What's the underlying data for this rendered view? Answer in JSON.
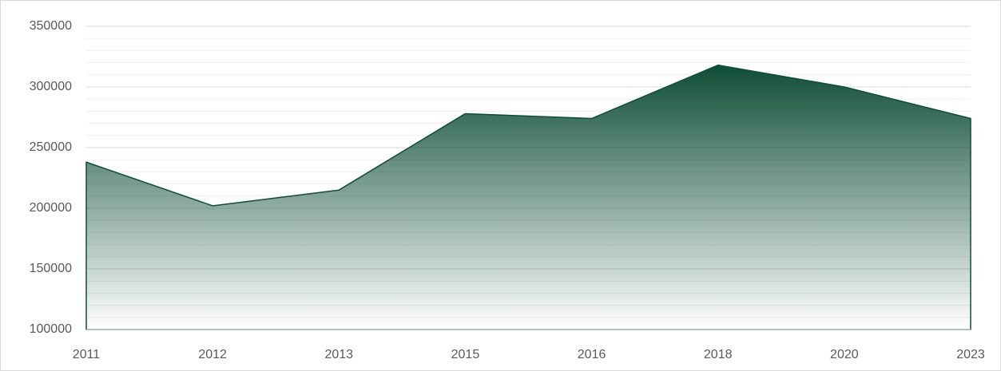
{
  "chart_data": {
    "type": "area",
    "categories": [
      "2011",
      "2012",
      "2013",
      "2015",
      "2016",
      "2018",
      "2020",
      "2023"
    ],
    "series": [
      {
        "color": "#0f4d37",
        "values": [
          238000,
          202000,
          215000,
          278000,
          274000,
          318000,
          300000,
          274000
        ]
      }
    ],
    "ylim": [
      100000,
      350000
    ],
    "yticks": [
      100000,
      150000,
      200000,
      250000,
      300000,
      350000
    ],
    "minor_yticks": [
      110000,
      120000,
      130000,
      140000,
      160000,
      170000,
      180000,
      190000,
      210000,
      220000,
      230000,
      240000,
      260000,
      270000,
      280000,
      290000,
      310000,
      320000,
      330000,
      340000
    ],
    "grid": true
  }
}
